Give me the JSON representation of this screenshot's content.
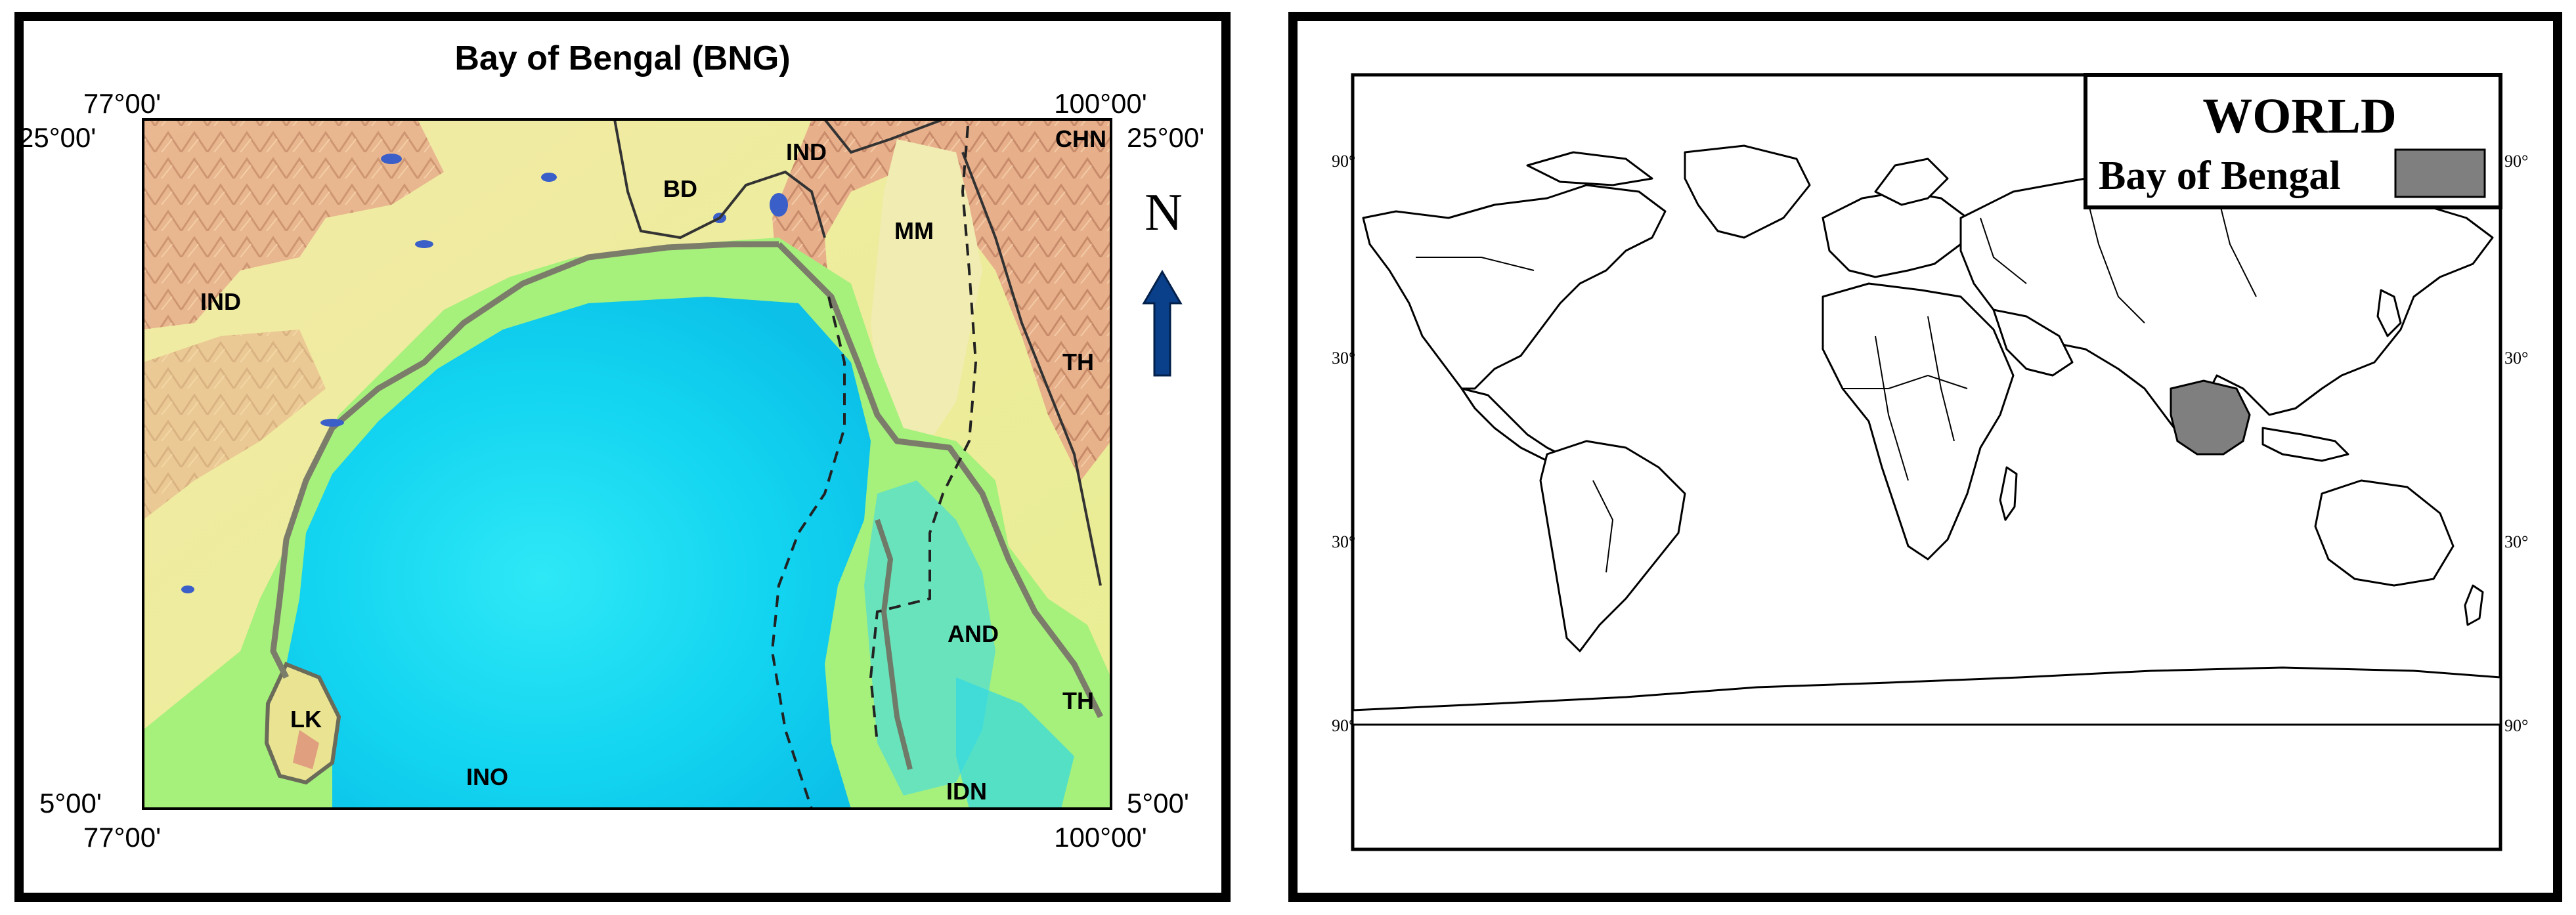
{
  "regional_map": {
    "title": "Bay of Bengal (BNG)",
    "coords": {
      "top_left_lon": "77°00'",
      "top_right_lon": "100°00'",
      "top_left_lat": "25°00'",
      "top_right_lat": "25°00'",
      "bottom_left_lat": "5°00'",
      "bottom_right_lat": "5°00'",
      "bottom_left_lon": "77°00'",
      "bottom_right_lon": "100°00'"
    },
    "labels": {
      "ind_west": "IND",
      "bd": "BD",
      "ind_east": "IND",
      "mm": "MM",
      "chn": "CHN",
      "th_north": "TH",
      "th_south": "TH",
      "and": "AND",
      "lk": "LK",
      "ino": "INO",
      "idn": "IDN"
    },
    "north_label": "N",
    "colors": {
      "deep_water": "#12e2f2",
      "shelf_water": "#a8f07a",
      "lowland": "#ecef94",
      "highland": "#e0a080",
      "arrow": "#0a3f8a"
    }
  },
  "world_map": {
    "legend_title": "WORLD",
    "legend_item": "Bay of Bengal",
    "highlight_color": "#7f7f7f",
    "lat_ticks": {
      "left_1": "90°",
      "left_2": "30°",
      "left_3": "30°",
      "left_4": "90°",
      "right_1": "90°",
      "right_2": "30°",
      "right_3": "30°",
      "right_4": "90°"
    }
  }
}
